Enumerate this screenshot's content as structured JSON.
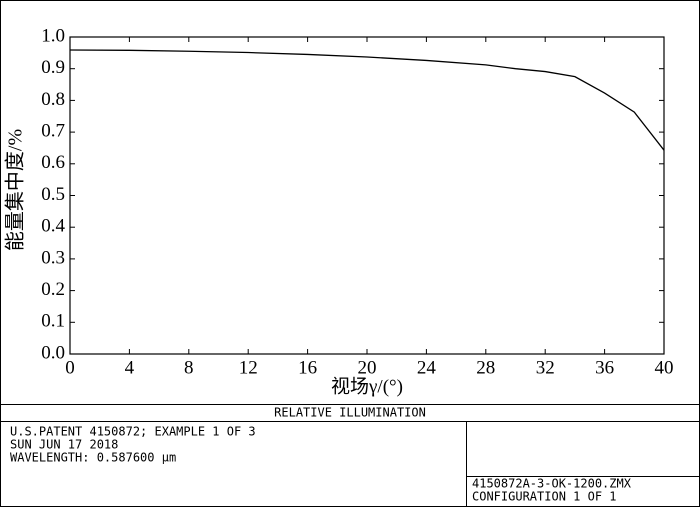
{
  "chart_data": {
    "type": "line",
    "title": "RELATIVE ILLUMINATION",
    "x_label": "视场γ/(°)",
    "y_label": "能量集中度/%",
    "x": [
      0,
      4,
      8,
      12,
      16,
      20,
      24,
      28,
      30,
      32,
      34,
      36,
      38,
      40
    ],
    "series": [
      {
        "color": "#000000",
        "values": [
          0.959,
          0.958,
          0.955,
          0.951,
          0.945,
          0.937,
          0.926,
          0.912,
          0.9,
          0.891,
          0.875,
          0.823,
          0.763,
          0.643
        ]
      }
    ],
    "xlim": [
      0,
      40
    ],
    "xticks": [
      0,
      4,
      8,
      12,
      16,
      20,
      24,
      28,
      32,
      36,
      40
    ],
    "ylim": [
      0,
      1
    ],
    "yticks": [
      {
        "value": 0,
        "label": "0.0"
      },
      {
        "value": 0.1,
        "label": "0.1"
      },
      {
        "value": 0.2,
        "label": "0.2"
      },
      {
        "value": 0.3,
        "label": "0.3"
      },
      {
        "value": 0.4,
        "label": "0.4"
      },
      {
        "value": 0.5,
        "label": "0.5"
      },
      {
        "value": 0.6,
        "label": "0.6"
      },
      {
        "value": 0.7,
        "label": "0.7"
      },
      {
        "value": 0.8,
        "label": "0.8"
      },
      {
        "value": 0.9,
        "label": "0.9"
      },
      {
        "value": 1,
        "label": "1.0"
      }
    ],
    "grid": false
  },
  "footer": {
    "lines": [
      "U.S.PATENT 4150872; EXAMPLE 1 OF 3",
      "SUN JUN 17 2018",
      "WAVELENGTH: 0.587600 µm"
    ],
    "file": "4150872A-3-OK-1200.ZMX",
    "configuration": "CONFIGURATION 1 OF 1"
  }
}
